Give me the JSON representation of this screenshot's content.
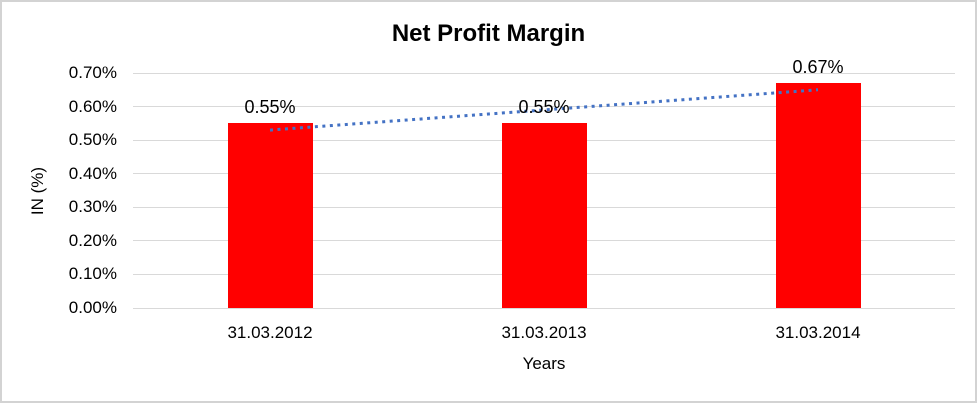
{
  "frame": {
    "background": "#FFFFFF",
    "border_color": "#D3D3D3"
  },
  "chart_data": {
    "type": "bar",
    "title": "Net Profit Margin",
    "xlabel": "Years",
    "ylabel": "IN (%)",
    "categories": [
      "31.03.2012",
      "31.03.2013",
      "31.03.2014"
    ],
    "values": [
      0.55,
      0.55,
      0.67
    ],
    "value_labels": [
      "0.55%",
      "0.55%",
      "0.67%"
    ],
    "ylim": [
      0,
      0.7
    ],
    "yticks": [
      {
        "value": 0.0,
        "label": "0.00%"
      },
      {
        "value": 0.1,
        "label": "0.10%"
      },
      {
        "value": 0.2,
        "label": "0.20%"
      },
      {
        "value": 0.3,
        "label": "0.30%"
      },
      {
        "value": 0.4,
        "label": "0.40%"
      },
      {
        "value": 0.5,
        "label": "0.50%"
      },
      {
        "value": 0.6,
        "label": "0.60%"
      },
      {
        "value": 0.7,
        "label": "0.70%"
      }
    ],
    "grid": true,
    "legend": "none",
    "bar_color": "#FF0000",
    "gridline_color": "#D9D9D9",
    "text_color": "#000000",
    "trendline": {
      "type": "linear",
      "style": "dotted",
      "color": "#4472C4",
      "start_category_index": 0,
      "end_category_index": 2,
      "start_value": 0.53,
      "end_value": 0.65
    }
  }
}
